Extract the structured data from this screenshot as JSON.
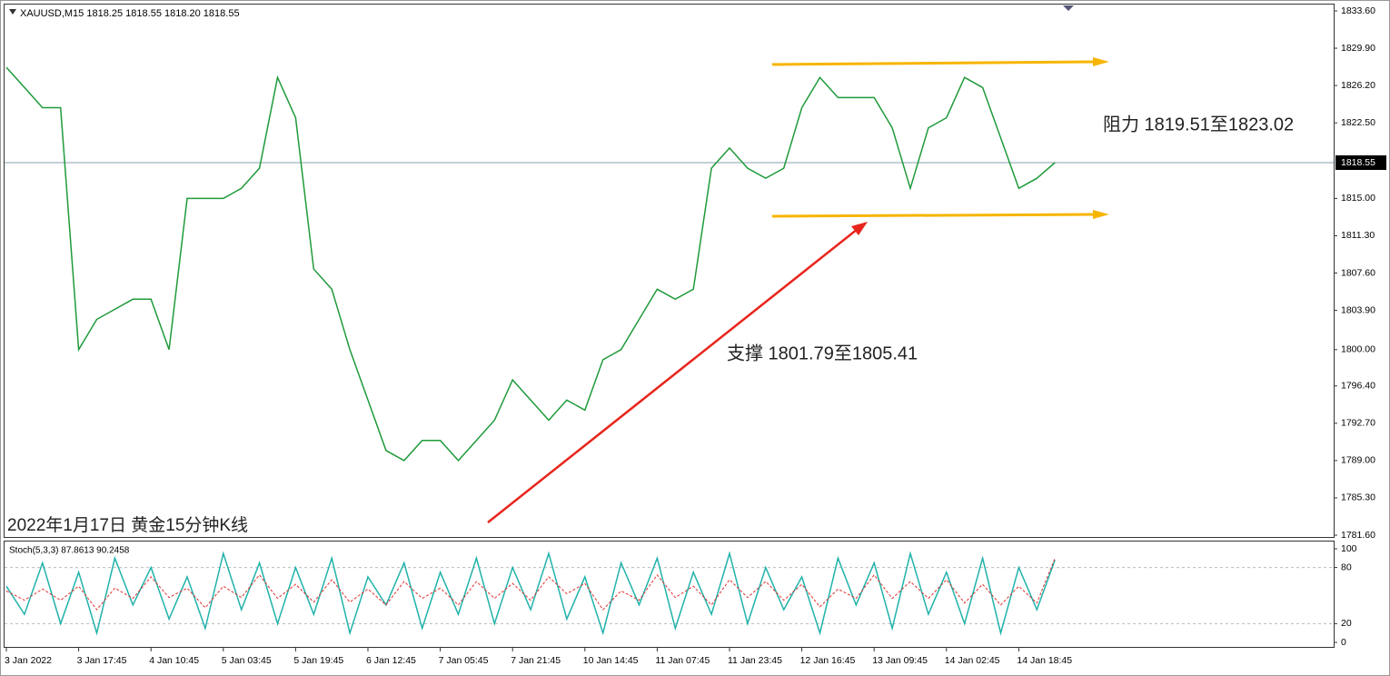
{
  "chart_data": [
    {
      "type": "line",
      "subtitle": "XAUUSD,M15  1818.25 1818.55 1818.20 1818.55",
      "annotations": [
        "阻力 1819.51至1823.02",
        "支撑 1801.79至1805.41",
        "2022年1月17日 黄金15分钟K线"
      ],
      "categories": [
        "3 Jan 2022",
        null,
        null,
        null,
        "3 Jan 17:45",
        null,
        null,
        null,
        "4 Jan 10:45",
        null,
        null,
        null,
        "5 Jan 03:45",
        null,
        null,
        null,
        "5 Jan 19:45",
        null,
        null,
        null,
        "6 Jan 12:45",
        null,
        null,
        null,
        "7 Jan 05:45",
        null,
        null,
        null,
        "7 Jan 21:45",
        null,
        null,
        null,
        "10 Jan 14:45",
        null,
        null,
        null,
        "11 Jan 07:45",
        null,
        null,
        null,
        "11 Jan 23:45",
        null,
        null,
        null,
        "12 Jan 16:45",
        null,
        null,
        null,
        "13 Jan 09:45",
        null,
        null,
        null,
        "14 Jan 02:45",
        null,
        null,
        null,
        "14 Jan 18:45",
        null,
        null,
        null
      ],
      "values": [
        1828,
        1826,
        1824,
        1824,
        1800,
        1803,
        1804,
        1805,
        1805,
        1800,
        1815,
        1815,
        1815,
        1816,
        1818,
        1827,
        1823,
        1808,
        1806,
        1800,
        1795,
        1790,
        1789,
        1791,
        1791,
        1789,
        1791,
        1793,
        1797,
        1795,
        1793,
        1795,
        1794,
        1799,
        1800,
        1803,
        1806,
        1805,
        1806,
        1818,
        1820,
        1818,
        1817,
        1818,
        1824,
        1827,
        1825,
        1825,
        1825,
        1822,
        1816,
        1822,
        1823,
        1827,
        1826,
        1821,
        1816,
        1817,
        1818.55,
        null
      ],
      "color": "#1f9a3a",
      "last_price": 1818.55,
      "ylim": [
        1781.6,
        1833.6
      ],
      "yticks": [
        {
          "value": 1781.6,
          "label": "1781.60"
        },
        {
          "value": 1785.3,
          "label": "1785.30"
        },
        {
          "value": 1789,
          "label": "1789.00"
        },
        {
          "value": 1792.7,
          "label": "1792.70"
        },
        {
          "value": 1796.4,
          "label": "1796.40"
        },
        {
          "value": 1800,
          "label": "1800.00"
        },
        {
          "value": 1803.9,
          "label": "1803.90"
        },
        {
          "value": 1807.6,
          "label": "1807.60"
        },
        {
          "value": 1811.3,
          "label": "1811.30"
        },
        {
          "value": 1815,
          "label": "1815.00"
        },
        {
          "value": 1822.5,
          "label": "1822.50"
        },
        {
          "value": 1826.2,
          "label": "1826.20"
        },
        {
          "value": 1829.9,
          "label": "1829.90"
        },
        {
          "value": 1833.6,
          "label": "1833.60"
        }
      ]
    },
    {
      "type": "line",
      "title": "Stoch(5,3,3) 87.8613 90.2458",
      "series": [
        {
          "color": "#20b2aa",
          "values": [
            60,
            30,
            85,
            20,
            75,
            10,
            90,
            40,
            80,
            25,
            70,
            15,
            95,
            35,
            85,
            20,
            80,
            30,
            90,
            10,
            70,
            40,
            85,
            15,
            75,
            30,
            90,
            20,
            80,
            35,
            95,
            25,
            70,
            10,
            85,
            40,
            90,
            15,
            75,
            30,
            95,
            20,
            80,
            35,
            70,
            10,
            90,
            40,
            85,
            15,
            95,
            30,
            75,
            20,
            90,
            10,
            80,
            35,
            88,
            null
          ]
        },
        {
          "color": "#e03030",
          "values": [
            55,
            45,
            57,
            45,
            60,
            35,
            58,
            47,
            70,
            48,
            58,
            37,
            60,
            48,
            72,
            47,
            62,
            43,
            67,
            43,
            57,
            40,
            65,
            47,
            58,
            40,
            65,
            47,
            63,
            45,
            70,
            52,
            63,
            35,
            55,
            45,
            72,
            48,
            60,
            40,
            67,
            48,
            65,
            45,
            62,
            38,
            57,
            47,
            72,
            47,
            65,
            47,
            67,
            42,
            62,
            40,
            60,
            42,
            90,
            null
          ]
        }
      ],
      "ylim": [
        0,
        100
      ],
      "yticks": [
        0,
        20,
        80,
        100
      ],
      "grid_ticks": [
        20,
        80
      ]
    }
  ]
}
